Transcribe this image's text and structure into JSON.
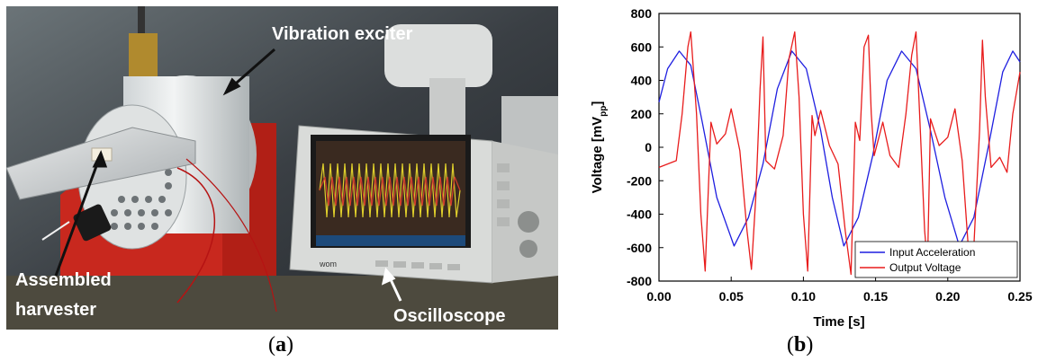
{
  "photo": {
    "callouts": {
      "vibration_exciter": "Vibration exciter",
      "assembled_line1": "Assembled",
      "assembled_line2": "harvester",
      "oscilloscope": "Oscilloscope"
    },
    "scope_brand": "wom"
  },
  "panels": {
    "a": {
      "open": "(",
      "letter": "a",
      "close": ")"
    },
    "b": {
      "open": "(",
      "letter": "b",
      "close": ")"
    }
  },
  "chart_data": {
    "type": "line",
    "xlabel": "Time  [s]",
    "ylabel": "Voltage [mV",
    "ylabel_sub": "pp",
    "ylabel_close": "]",
    "xlim": [
      0,
      0.25
    ],
    "ylim": [
      -800,
      800
    ],
    "xticks": [
      "0.00",
      "0.05",
      "0.10",
      "0.15",
      "0.20",
      "0.25"
    ],
    "yticks": [
      "800",
      "600",
      "400",
      "200",
      "0",
      "-200",
      "-400",
      "-600",
      "-800"
    ],
    "grid": false,
    "legend_position": "bottom-right",
    "series": [
      {
        "name": "Input  Acceleration",
        "color": "#1f1fe0",
        "x": [
          0.0,
          0.006,
          0.014,
          0.022,
          0.03,
          0.04,
          0.052,
          0.062,
          0.072,
          0.082,
          0.092,
          0.102,
          0.112,
          0.12,
          0.128,
          0.138,
          0.148,
          0.158,
          0.168,
          0.178,
          0.188,
          0.198,
          0.208,
          0.218,
          0.228,
          0.238,
          0.245,
          0.25
        ],
        "y": [
          270,
          470,
          575,
          490,
          150,
          -300,
          -590,
          -420,
          -100,
          350,
          575,
          470,
          100,
          -300,
          -590,
          -420,
          -50,
          400,
          575,
          470,
          100,
          -300,
          -590,
          -420,
          0,
          450,
          575,
          510
        ]
      },
      {
        "name": "Output Voltage",
        "color": "#e81c1c",
        "x": [
          0.0,
          0.006,
          0.012,
          0.016,
          0.02,
          0.022,
          0.026,
          0.029,
          0.032,
          0.036,
          0.04,
          0.046,
          0.05,
          0.056,
          0.061,
          0.064,
          0.067,
          0.07,
          0.072,
          0.074,
          0.08,
          0.086,
          0.09,
          0.094,
          0.097,
          0.1,
          0.103,
          0.106,
          0.108,
          0.112,
          0.118,
          0.124,
          0.129,
          0.133,
          0.136,
          0.139,
          0.142,
          0.145,
          0.147,
          0.149,
          0.155,
          0.16,
          0.166,
          0.171,
          0.175,
          0.178,
          0.181,
          0.184,
          0.186,
          0.188,
          0.194,
          0.2,
          0.205,
          0.21,
          0.215,
          0.218,
          0.222,
          0.224,
          0.226,
          0.23,
          0.236,
          0.241,
          0.245,
          0.25
        ],
        "y": [
          -120,
          -100,
          -80,
          200,
          600,
          690,
          200,
          -400,
          -740,
          150,
          20,
          80,
          230,
          -20,
          -500,
          -730,
          -300,
          350,
          660,
          -80,
          -130,
          70,
          530,
          690,
          300,
          -400,
          -740,
          190,
          70,
          220,
          10,
          -100,
          -500,
          -760,
          150,
          40,
          600,
          670,
          200,
          -50,
          150,
          -50,
          -120,
          200,
          550,
          690,
          100,
          -500,
          -700,
          170,
          10,
          60,
          230,
          -80,
          -700,
          -600,
          100,
          640,
          300,
          -120,
          -60,
          -150,
          200,
          450
        ]
      }
    ]
  }
}
